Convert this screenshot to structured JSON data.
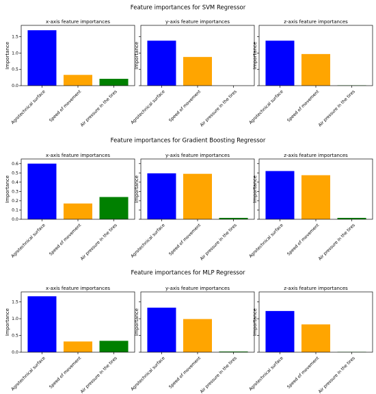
{
  "categories": [
    "Agrotechnical surface",
    "Speed of movement",
    "Air pressure in the tires"
  ],
  "colors": [
    "#0000ff",
    "#ffa500",
    "#008000"
  ],
  "chart_data": [
    {
      "type": "bar",
      "title": "Feature importances for SVM Regressor",
      "ylim": [
        0,
        1.85
      ],
      "yticks": [
        0.0,
        0.5,
        1.0,
        1.5
      ],
      "ytick_labels": [
        "0.0",
        "0.5",
        "1.0",
        "1.5"
      ],
      "panels": [
        {
          "title": "x-axis feature importances",
          "ylabel": "Importance",
          "values": [
            1.7,
            0.33,
            0.21
          ]
        },
        {
          "title": "y-axis feature importances",
          "ylabel": "Importance",
          "values": [
            1.38,
            0.88,
            0.0
          ]
        },
        {
          "title": "z-axis feature importances",
          "ylabel": "Importance",
          "values": [
            1.38,
            0.97,
            0.01
          ]
        }
      ]
    },
    {
      "type": "bar",
      "title": "Feature importances for Gradient Boosting Regressor",
      "ylim": [
        0,
        0.65
      ],
      "yticks": [
        0.0,
        0.1,
        0.2,
        0.3,
        0.4,
        0.5,
        0.6
      ],
      "ytick_labels": [
        "0.0",
        "0.1",
        "0.2",
        "0.3",
        "0.4",
        "0.5",
        "0.6"
      ],
      "panels": [
        {
          "title": "x-axis feature importances",
          "ylabel": "Importance",
          "values": [
            0.6,
            0.17,
            0.24
          ]
        },
        {
          "title": "y-axis feature importances",
          "ylabel": "Importance",
          "values": [
            0.495,
            0.49,
            0.015
          ]
        },
        {
          "title": "z-axis feature importances",
          "ylabel": "Importance",
          "values": [
            0.52,
            0.475,
            0.015
          ]
        }
      ]
    },
    {
      "type": "bar",
      "title": "Feature importances for MLP Regressor",
      "ylim": [
        0,
        1.8
      ],
      "yticks": [
        0.0,
        0.5,
        1.0,
        1.5
      ],
      "ytick_labels": [
        "0.0",
        "0.5",
        "1.0",
        "1.5"
      ],
      "panels": [
        {
          "title": "x-axis feature importances",
          "ylabel": "Importance",
          "values": [
            1.67,
            0.32,
            0.34
          ]
        },
        {
          "title": "y-axis feature importances",
          "ylabel": "Importance",
          "values": [
            1.33,
            0.99,
            0.02
          ]
        },
        {
          "title": "z-axis feature importances",
          "ylabel": "Importance",
          "values": [
            1.23,
            0.83,
            0.01
          ]
        }
      ]
    }
  ]
}
